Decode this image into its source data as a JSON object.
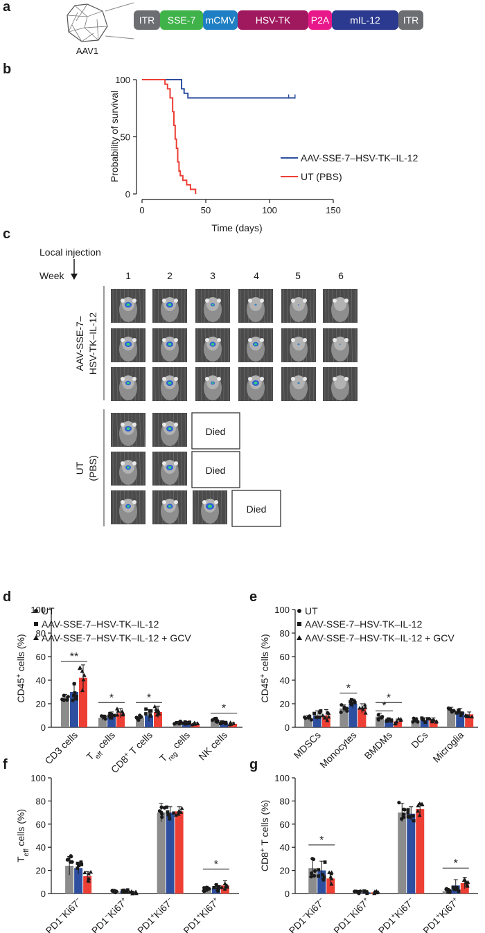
{
  "panel_labels": [
    "a",
    "b",
    "c",
    "d",
    "e",
    "f",
    "g"
  ],
  "colors": {
    "ut": "#8c8c8c",
    "aav": "#2e4f9f",
    "gcv": "#ee3f35",
    "axis": "#1a1a1a"
  },
  "construct": {
    "virus_label": "AAV1",
    "elements": [
      {
        "label": "ITR",
        "color": "#6d6e71"
      },
      {
        "label": "SSE-7",
        "color": "#3fb24a"
      },
      {
        "label": "mCMV",
        "color": "#1f7fc4"
      },
      {
        "label": "HSV-TK",
        "color": "#a0195f"
      },
      {
        "label": "P2A",
        "color": "#e8178a"
      },
      {
        "label": "mIL-12",
        "color": "#2b3a8f"
      },
      {
        "label": "ITR",
        "color": "#6d6e71"
      }
    ]
  },
  "imaging": {
    "local_injection": "Local injection",
    "week_label": "Week",
    "weeks": [
      "1",
      "2",
      "3",
      "4",
      "5",
      "6"
    ],
    "group_aav_line1": "AAV-SSE-7–",
    "group_aav_line2": "HSV-TK–IL-12",
    "group_ut_line1": "UT",
    "group_ut_line2": "(PBS)",
    "died": "Died"
  },
  "chart_data": [
    {
      "id": "b",
      "type": "line",
      "xlabel": "Time (days)",
      "ylabel": "Probability of survival",
      "xlim": [
        0,
        150
      ],
      "ylim": [
        0,
        100
      ],
      "xticks": [
        0,
        50,
        100,
        150
      ],
      "yticks": [
        0,
        50,
        100
      ],
      "series": [
        {
          "name": "AAV-SSE-7–HSV-TK–IL-12",
          "color": "#2e4f9f",
          "x": [
            0,
            31,
            31,
            33,
            33,
            36,
            36,
            115,
            120
          ],
          "y": [
            100,
            100,
            92,
            92,
            88,
            88,
            84,
            84,
            84
          ]
        },
        {
          "name": "UT (PBS)",
          "color": "#ee3f35",
          "x": [
            0,
            18,
            18,
            20,
            20,
            22,
            22,
            24,
            24,
            25,
            25,
            26,
            26,
            27,
            27,
            28,
            28,
            29,
            29,
            30,
            30,
            32,
            32,
            35,
            35,
            38,
            38,
            42,
            42
          ],
          "y": [
            100,
            100,
            96,
            96,
            92,
            92,
            84,
            84,
            72,
            72,
            60,
            60,
            48,
            48,
            40,
            40,
            28,
            28,
            20,
            20,
            16,
            16,
            12,
            12,
            8,
            8,
            4,
            4,
            0
          ]
        }
      ]
    },
    {
      "id": "d",
      "type": "bar",
      "ylabel": "CD45+ cells (%)",
      "ylim": [
        0,
        100
      ],
      "yticks": [
        0,
        20,
        40,
        60,
        80,
        100
      ],
      "legend": [
        "UT",
        "AAV-SSE-7–HSV-TK–IL-12",
        "AAV-SSE-7–HSV-TK–IL-12 + GCV"
      ],
      "categories": [
        "CD3 cells",
        "Teff cells",
        "CD8+ T cells",
        "Treg cells",
        "NK cells"
      ],
      "series": [
        {
          "name": "UT",
          "values": [
            25,
            8,
            8,
            4,
            6
          ],
          "errors": [
            3,
            2,
            2,
            1,
            2
          ]
        },
        {
          "name": "AAV-SSE-7–HSV-TK–IL-12",
          "values": [
            30,
            10,
            10,
            4,
            4
          ],
          "errors": [
            7,
            3,
            5,
            1,
            1
          ]
        },
        {
          "name": "AAV-SSE-7–HSV-TK–IL-12 + GCV",
          "values": [
            42,
            12,
            13,
            3,
            3
          ],
          "errors": [
            11,
            4,
            5,
            1,
            1
          ]
        }
      ],
      "significance": [
        {
          "category": 0,
          "from": 0,
          "to": 2,
          "y": 56,
          "label": "**"
        },
        {
          "category": 1,
          "from": 0,
          "to": 2,
          "y": 21,
          "label": "*"
        },
        {
          "category": 2,
          "from": 0,
          "to": 2,
          "y": 21,
          "label": "*"
        },
        {
          "category": 4,
          "from": 0,
          "to": 2,
          "y": 12,
          "label": "*"
        }
      ]
    },
    {
      "id": "e",
      "type": "bar",
      "ylabel": "CD45+ cells (%)",
      "ylim": [
        0,
        100
      ],
      "yticks": [
        0,
        20,
        40,
        60,
        80,
        100
      ],
      "legend": [
        "UT",
        "AAV-SSE-7–HSV-TK–IL-12",
        "AAV-SSE-7–HSV-TK–IL-12 + GCV"
      ],
      "categories": [
        "MDSCs",
        "Monocytes",
        "BMDMs",
        "DCs",
        "Microglia"
      ],
      "series": [
        {
          "name": "UT",
          "values": [
            8,
            16,
            9,
            6,
            15
          ],
          "errors": [
            2,
            3,
            3,
            2,
            2
          ]
        },
        {
          "name": "AAV-SSE-7–HSV-TK–IL-12",
          "values": [
            10,
            20,
            6,
            6,
            13
          ],
          "errors": [
            4,
            4,
            2,
            2,
            3
          ]
        },
        {
          "name": "AAV-SSE-7–HSV-TK–IL-12 + GCV",
          "values": [
            10,
            16,
            5,
            6,
            11
          ],
          "errors": [
            5,
            4,
            2,
            2,
            2
          ]
        }
      ],
      "significance": [
        {
          "category": 1,
          "from": 0,
          "to": 1,
          "y": 29,
          "label": "*"
        },
        {
          "category": 2,
          "from": 0,
          "to": 2,
          "y": 21,
          "label": "*"
        },
        {
          "category": 2,
          "from": 0,
          "to": 1,
          "y": 14,
          "label": "*"
        }
      ]
    },
    {
      "id": "f",
      "type": "bar",
      "ylabel": "Teff cells (%)",
      "ylim": [
        0,
        100
      ],
      "yticks": [
        0,
        20,
        40,
        60,
        80,
        100
      ],
      "categories": [
        "PD1−Ki67−",
        "PD1−Ki67+",
        "PD1+Ki67−",
        "PD1+Ki67+"
      ],
      "series": [
        {
          "name": "UT",
          "values": [
            24,
            2,
            70,
            4
          ],
          "errors": [
            8,
            1,
            8,
            2
          ]
        },
        {
          "name": "AAV-SSE-7–HSV-TK–IL-12",
          "values": [
            22,
            2,
            70,
            5
          ],
          "errors": [
            5,
            1,
            5,
            3
          ]
        },
        {
          "name": "AAV-SSE-7–HSV-TK–IL-12 + GCV",
          "values": [
            15,
            1,
            71,
            7
          ],
          "errors": [
            4,
            1,
            4,
            4
          ]
        }
      ],
      "significance": [
        {
          "category": 3,
          "from": 0,
          "to": 2,
          "y": 21,
          "label": "*"
        }
      ]
    },
    {
      "id": "g",
      "type": "bar",
      "ylabel": "CD8+ T cells (%)",
      "ylim": [
        0,
        100
      ],
      "yticks": [
        0,
        20,
        40,
        60,
        80,
        100
      ],
      "categories": [
        "PD1−Ki67−",
        "PD1−Ki67+",
        "PD1+Ki67−",
        "PD1+Ki67+"
      ],
      "series": [
        {
          "name": "UT",
          "values": [
            22,
            1,
            70,
            2
          ],
          "errors": [
            8,
            1,
            8,
            2
          ]
        },
        {
          "name": "AAV-SSE-7–HSV-TK–IL-12",
          "values": [
            20,
            1,
            69,
            7
          ],
          "errors": [
            8,
            1,
            6,
            5
          ]
        },
        {
          "name": "AAV-SSE-7–HSV-TK–IL-12 + GCV",
          "values": [
            13,
            1,
            73,
            9
          ],
          "errors": [
            5,
            1,
            5,
            5
          ]
        }
      ],
      "significance": [
        {
          "category": 0,
          "from": 0,
          "to": 2,
          "y": 42,
          "label": "*"
        },
        {
          "category": 3,
          "from": 0,
          "to": 2,
          "y": 22,
          "label": "*"
        }
      ]
    }
  ]
}
